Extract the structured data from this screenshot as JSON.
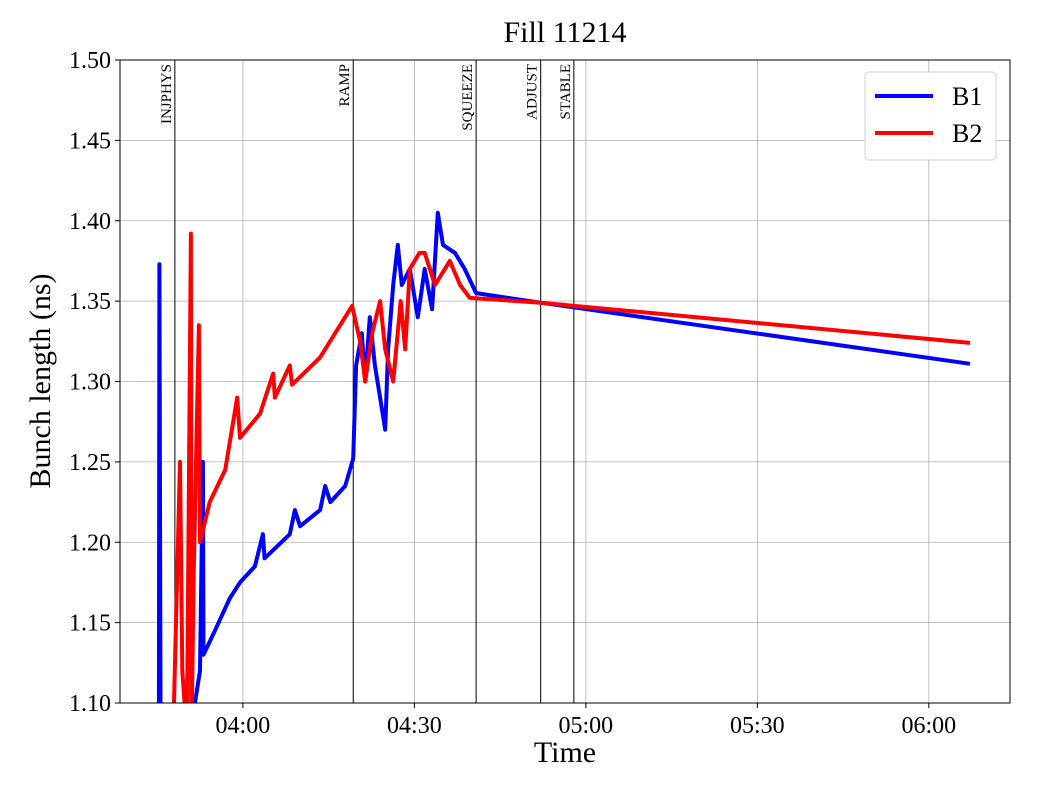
{
  "chart_data": {
    "type": "line",
    "title": "Fill 11214",
    "xlabel": "Time",
    "ylabel": "Bunch length (ns)",
    "xlim": [
      218.5,
      374.2
    ],
    "ylim": [
      1.1,
      1.5
    ],
    "xticks": [
      {
        "value": 240,
        "label": "04:00"
      },
      {
        "value": 270,
        "label": "04:30"
      },
      {
        "value": 300,
        "label": "05:00"
      },
      {
        "value": 330,
        "label": "05:30"
      },
      {
        "value": 360,
        "label": "06:00"
      }
    ],
    "yticks": [
      {
        "value": 1.1,
        "label": "1.10"
      },
      1.15,
      {
        "value": 1.2,
        "label": "1.20"
      },
      1.25,
      {
        "value": 1.3,
        "label": "1.30"
      },
      1.35,
      {
        "value": 1.4,
        "label": "1.40"
      },
      1.45,
      {
        "value": 1.5,
        "label": "1.50"
      }
    ],
    "grid": true,
    "legend": "upper right",
    "vlines": [
      {
        "x": 228.1,
        "label": "INJPHYS"
      },
      {
        "x": 259.3,
        "label": "RAMP"
      },
      {
        "x": 280.8,
        "label": "SQUEEZE"
      },
      {
        "x": 292.1,
        "label": "ADJUST"
      },
      {
        "x": 297.9,
        "label": "STABLE"
      }
    ],
    "series": [
      {
        "name": "B1",
        "color": "#0000ff",
        "x": [
          225.3,
          225.4,
          225.6,
          231.6,
          232.5,
          233.0,
          233.1,
          235.1,
          237.7,
          239.5,
          242.1,
          243.5,
          243.8,
          248.2,
          249.1,
          250.0,
          253.5,
          254.4,
          255.3,
          257.9,
          259.3,
          259.8,
          260.8,
          261.4,
          262.2,
          263.1,
          264.0,
          264.9,
          265.4,
          266.3,
          267.1,
          267.8,
          269.2,
          270.6,
          271.8,
          273.1,
          274.1,
          275.0,
          277.1,
          278.8,
          280.8,
          292.1,
          367.2
        ],
        "values": [
          1.08,
          1.373,
          1.08,
          1.1,
          1.12,
          1.25,
          1.13,
          1.145,
          1.165,
          1.175,
          1.185,
          1.205,
          1.19,
          1.205,
          1.22,
          1.21,
          1.22,
          1.235,
          1.225,
          1.235,
          1.252,
          1.31,
          1.33,
          1.3,
          1.34,
          1.31,
          1.29,
          1.27,
          1.32,
          1.36,
          1.385,
          1.36,
          1.37,
          1.34,
          1.37,
          1.345,
          1.405,
          1.385,
          1.38,
          1.37,
          1.355,
          1.349,
          1.311
        ]
      },
      {
        "name": "B2",
        "color": "#ff0000",
        "x": [
          227.8,
          229.0,
          229.4,
          230.2,
          230.9,
          231.0,
          231.4,
          232.3,
          232.5,
          234.2,
          236.9,
          239.0,
          239.5,
          243.0,
          245.3,
          245.6,
          248.2,
          248.6,
          253.5,
          259.1,
          260.5,
          261.4,
          262.6,
          264.0,
          264.9,
          266.3,
          267.6,
          268.4,
          269.2,
          270.9,
          271.8,
          273.6,
          276.2,
          278.0,
          279.7,
          292.1,
          367.2
        ],
        "values": [
          1.08,
          1.25,
          1.12,
          1.08,
          1.392,
          1.08,
          1.18,
          1.335,
          1.2,
          1.225,
          1.245,
          1.29,
          1.265,
          1.28,
          1.305,
          1.29,
          1.31,
          1.298,
          1.315,
          1.347,
          1.325,
          1.3,
          1.33,
          1.35,
          1.32,
          1.3,
          1.35,
          1.32,
          1.37,
          1.38,
          1.38,
          1.36,
          1.375,
          1.36,
          1.352,
          1.349,
          1.324
        ]
      }
    ]
  }
}
